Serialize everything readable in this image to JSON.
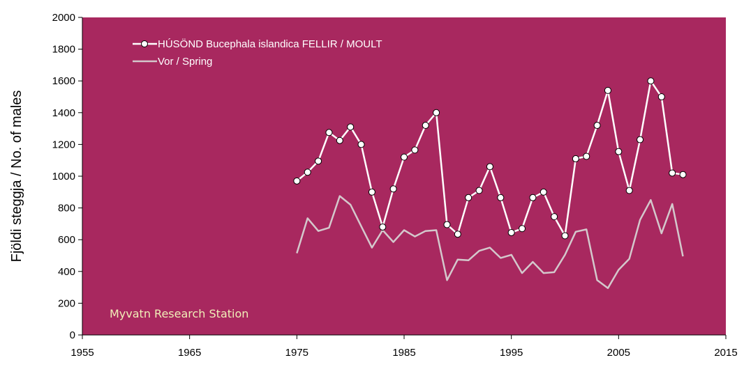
{
  "chart_data": {
    "type": "line",
    "title": "",
    "xlabel": "",
    "ylabel": "Fjöldi steggja / No. of males",
    "xlim": [
      1955,
      2015
    ],
    "ylim": [
      0,
      2000
    ],
    "xticks": [
      1955,
      1965,
      1975,
      1985,
      1995,
      2005,
      2015
    ],
    "yticks": [
      0,
      200,
      400,
      600,
      800,
      1000,
      1200,
      1400,
      1600,
      1800,
      2000
    ],
    "grid": false,
    "legend_position": "top-left",
    "plot_background": "#a8285f",
    "annotation": "Myvatn Research Station",
    "annotation_color": "#f1efb8",
    "series": [
      {
        "name": "HÚSÖND Bucephala islandica FELLIR / MOULT",
        "color": "#ffffff",
        "markers": true,
        "x": [
          1975,
          1976,
          1977,
          1978,
          1979,
          1980,
          1981,
          1982,
          1983,
          1984,
          1985,
          1986,
          1987,
          1988,
          1989,
          1990,
          1991,
          1992,
          1993,
          1994,
          1995,
          1996,
          1997,
          1998,
          1999,
          2000,
          2001,
          2002,
          2003,
          2004,
          2005,
          2006,
          2007,
          2008,
          2009,
          2010,
          2011
        ],
        "y": [
          970,
          1025,
          1095,
          1275,
          1225,
          1310,
          1200,
          900,
          680,
          920,
          1120,
          1165,
          1320,
          1400,
          695,
          635,
          865,
          910,
          1060,
          865,
          645,
          670,
          865,
          900,
          745,
          625,
          1110,
          1125,
          1320,
          1540,
          1155,
          910,
          1230,
          1600,
          1500,
          1020,
          1010
        ]
      },
      {
        "name": "Vor / Spring",
        "color": "#d4c8cc",
        "markers": false,
        "x": [
          1975,
          1976,
          1977,
          1978,
          1979,
          1980,
          1981,
          1982,
          1983,
          1984,
          1985,
          1986,
          1987,
          1988,
          1989,
          1990,
          1991,
          1992,
          1993,
          1994,
          1995,
          1996,
          1997,
          1998,
          1999,
          2000,
          2001,
          2002,
          2003,
          2004,
          2005,
          2006,
          2007,
          2008,
          2009,
          2010,
          2011
        ],
        "y": [
          515,
          735,
          655,
          675,
          875,
          820,
          685,
          550,
          660,
          585,
          660,
          620,
          655,
          660,
          345,
          475,
          470,
          530,
          550,
          485,
          505,
          390,
          460,
          390,
          395,
          505,
          650,
          665,
          345,
          295,
          410,
          480,
          725,
          850,
          640,
          825,
          495
        ]
      }
    ]
  }
}
